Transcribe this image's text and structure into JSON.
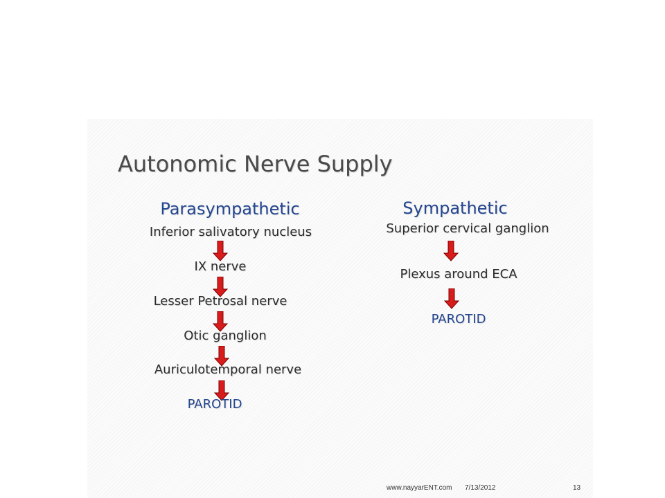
{
  "slide": {
    "title": "Autonomic Nerve Supply",
    "parasympathetic": {
      "heading": "Parasympathetic",
      "steps": [
        "Inferior salivatory nucleus",
        "IX nerve",
        "Lesser Petrosal nerve",
        "Otic ganglion",
        "Auriculotemporal nerve",
        "PAROTID"
      ]
    },
    "sympathetic": {
      "heading": "Sympathetic",
      "steps": [
        "Superior cervical ganglion",
        "Plexus around ECA",
        "PAROTID"
      ]
    },
    "footer": {
      "website": "www.nayyarENT.com",
      "date": "7/13/2012",
      "page_number": "13"
    },
    "colors": {
      "heading": "#24468f",
      "arrow_fill": "#d81c1c",
      "arrow_outline": "#7a0000"
    }
  }
}
